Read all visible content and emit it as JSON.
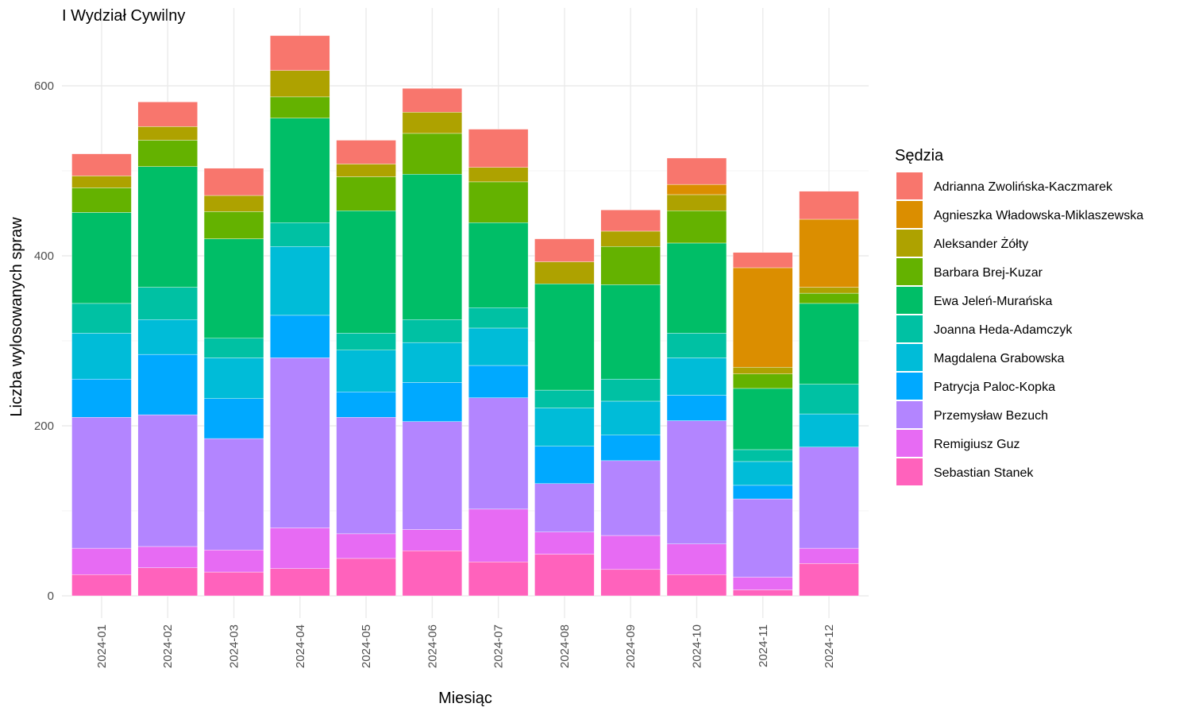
{
  "chart_data": {
    "type": "bar",
    "stacked": true,
    "title": "I Wydział Cywilny",
    "xlabel": "Miesiąc",
    "ylabel": "Liczba wylosowanych spraw",
    "ylim": [
      0,
      660
    ],
    "yticks": [
      0,
      200,
      400,
      600
    ],
    "grid": true,
    "legend_title": "Sędzia",
    "legend_position": "right",
    "categories": [
      "2024-01",
      "2024-02",
      "2024-03",
      "2024-04",
      "2024-05",
      "2024-06",
      "2024-07",
      "2024-08",
      "2024-09",
      "2024-10",
      "2024-11",
      "2024-12"
    ],
    "series": [
      {
        "name": "Sebastian Stanek",
        "color": "#FF62BC",
        "values": [
          25,
          33,
          28,
          32,
          44,
          53,
          40,
          49,
          31,
          25,
          7,
          38
        ]
      },
      {
        "name": "Remigiusz Guz",
        "color": "#E76BF3",
        "values": [
          31,
          25,
          26,
          48,
          29,
          25,
          62,
          26,
          40,
          36,
          15,
          18
        ]
      },
      {
        "name": "Przemysław Bezuch",
        "color": "#B385FF",
        "values": [
          154,
          155,
          131,
          200,
          137,
          127,
          131,
          57,
          88,
          145,
          92,
          119
        ]
      },
      {
        "name": "Patrycja Paloc-Kopka",
        "color": "#00A9FF",
        "values": [
          45,
          71,
          47,
          50,
          30,
          46,
          38,
          44,
          30,
          30,
          16,
          0
        ]
      },
      {
        "name": "Magdalena Grabowska",
        "color": "#00BCD8",
        "values": [
          54,
          41,
          48,
          81,
          49,
          47,
          44,
          45,
          40,
          44,
          28,
          39
        ]
      },
      {
        "name": "Joanna Heda-Adamczyk",
        "color": "#00C1A3",
        "values": [
          35,
          38,
          23,
          28,
          20,
          27,
          24,
          21,
          26,
          29,
          14,
          35
        ]
      },
      {
        "name": "Ewa Jeleń-Murańska",
        "color": "#00BE67",
        "values": [
          107,
          142,
          117,
          123,
          144,
          171,
          100,
          125,
          111,
          106,
          72,
          95
        ]
      },
      {
        "name": "Barbara Brej-Kuzar",
        "color": "#64B200",
        "values": [
          29,
          31,
          32,
          25,
          40,
          48,
          48,
          0,
          45,
          38,
          17,
          12
        ]
      },
      {
        "name": "Aleksander Żółty",
        "color": "#AEA200",
        "values": [
          14,
          16,
          19,
          31,
          15,
          25,
          17,
          26,
          18,
          19,
          8,
          7
        ]
      },
      {
        "name": "Agnieszka Władowska-Miklaszewska",
        "color": "#DB8E00",
        "values": [
          0,
          0,
          0,
          0,
          0,
          0,
          0,
          0,
          0,
          12,
          117,
          80
        ]
      },
      {
        "name": "Adrianna Zwolińska-Kaczmarek",
        "color": "#F8766D",
        "values": [
          26,
          29,
          32,
          41,
          28,
          28,
          45,
          27,
          25,
          31,
          18,
          33
        ]
      }
    ],
    "legend_order": [
      "Adrianna Zwolińska-Kaczmarek",
      "Agnieszka Władowska-Miklaszewska",
      "Aleksander Żółty",
      "Barbara Brej-Kuzar",
      "Ewa Jeleń-Murańska",
      "Joanna Heda-Adamczyk",
      "Magdalena Grabowska",
      "Patrycja Paloc-Kopka",
      "Przemysław Bezuch",
      "Remigiusz Guz",
      "Sebastian Stanek"
    ]
  }
}
